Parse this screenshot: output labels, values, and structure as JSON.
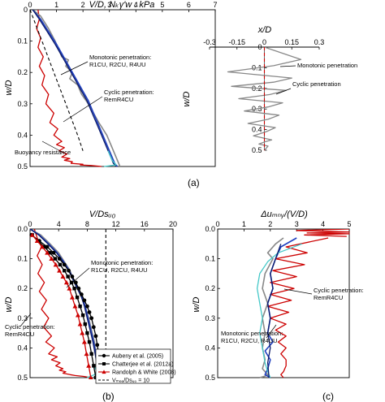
{
  "chart_data": [
    {
      "panel": "(a)",
      "type": "line",
      "xlabel": "V/D, Nₖγ'w : kPa",
      "ylabel": "w/D",
      "xlim": [
        0,
        7
      ],
      "ylim": [
        0.5,
        0
      ],
      "xticks": [
        "0",
        "1",
        "2",
        "3",
        "4",
        "5",
        "6",
        "7"
      ],
      "yticks": [
        "0",
        "0.1",
        "0.2",
        "0.3",
        "0.4",
        "0.5"
      ],
      "series": [
        {
          "key": "cyclic",
          "color": "#cc0000",
          "x": [
            0.3,
            0.35,
            0.25,
            0.4,
            0.3,
            0.5,
            0.35,
            0.55,
            0.45,
            0.7,
            0.6,
            0.9,
            0.75,
            1.05,
            0.9,
            1.2,
            1.0,
            1.3,
            1.1,
            1.4,
            1.2,
            1.5,
            1.3,
            1.6,
            1.55,
            2.0,
            1.9,
            2.3,
            2.7
          ],
          "y": [
            0,
            0.03,
            0.06,
            0.09,
            0.12,
            0.15,
            0.18,
            0.21,
            0.24,
            0.27,
            0.3,
            0.33,
            0.36,
            0.38,
            0.4,
            0.42,
            0.43,
            0.44,
            0.45,
            0.46,
            0.47,
            0.475,
            0.48,
            0.485,
            0.49,
            0.493,
            0.495,
            0.497,
            0.5
          ]
        },
        {
          "key": "gray",
          "color": "#888888",
          "x": [
            0.1,
            0.4,
            0.7,
            0.95,
            1.1,
            1.2,
            1.45,
            1.35,
            1.6,
            1.5,
            1.8,
            1.95,
            2.2,
            2.4,
            2.6,
            2.9,
            3.1,
            3.3,
            3.4
          ],
          "y": [
            0,
            0.02,
            0.06,
            0.1,
            0.13,
            0.15,
            0.16,
            0.18,
            0.2,
            0.22,
            0.24,
            0.27,
            0.3,
            0.33,
            0.36,
            0.4,
            0.44,
            0.48,
            0.5
          ]
        },
        {
          "key": "blue",
          "color": "#1f3fbf",
          "x": [
            0.1,
            0.4,
            0.7,
            1.0,
            1.2,
            1.4,
            1.6,
            1.8,
            2.0,
            2.2,
            2.4,
            2.6,
            2.8,
            3.0,
            3.2,
            3.3
          ],
          "y": [
            0,
            0.03,
            0.07,
            0.11,
            0.14,
            0.17,
            0.2,
            0.23,
            0.26,
            0.29,
            0.33,
            0.37,
            0.41,
            0.45,
            0.49,
            0.5
          ]
        },
        {
          "key": "navy",
          "color": "#0a1a6a",
          "x": [
            0.1,
            0.35,
            0.65,
            0.95,
            1.15,
            1.35,
            1.55,
            1.75,
            1.95,
            2.15,
            2.35,
            2.55,
            2.75,
            2.95,
            3.15,
            3.25
          ],
          "y": [
            0,
            0.03,
            0.07,
            0.11,
            0.14,
            0.17,
            0.2,
            0.23,
            0.26,
            0.29,
            0.33,
            0.37,
            0.41,
            0.45,
            0.49,
            0.5
          ]
        },
        {
          "key": "cyan",
          "color": "#44c8c8",
          "x": [
            2.95,
            3.05,
            3.1,
            3.2,
            3.25,
            2.8
          ],
          "y": [
            0.45,
            0.47,
            0.48,
            0.49,
            0.495,
            0.5
          ]
        },
        {
          "key": "buoyancy",
          "color": "#000000",
          "dash": true,
          "x": [
            0,
            0.45,
            0.9,
            1.35,
            1.8,
            2.0
          ],
          "y": [
            0,
            0.1,
            0.2,
            0.3,
            0.4,
            0.45
          ]
        }
      ],
      "annotations": [
        "Monotonic penetration:",
        "R1CU, R2CU, R4UU",
        "Cyclic penetration:",
        "RemR4CU",
        "Buoyancy resistance"
      ]
    },
    {
      "panel": "(a) inset",
      "type": "line",
      "xlabel": "x/D",
      "ylabel": "w/D",
      "xlim": [
        -0.3,
        0.3
      ],
      "ylim": [
        0.5,
        0
      ],
      "xticks": [
        "-0.3",
        "-0.15",
        "0",
        "0.15",
        "0.3"
      ],
      "yticks": [
        "0",
        "0.1",
        "0.2",
        "0.3",
        "0.4",
        "0.5"
      ],
      "series": [
        {
          "key": "sway",
          "color": "#888888",
          "x": [
            0,
            0.1,
            0.2,
            0.05,
            -0.2,
            0.15,
            0.05,
            -0.18,
            0.12,
            0.03,
            -0.14,
            0.1,
            0.02,
            -0.11,
            0.08,
            0.02,
            -0.09,
            0.06,
            0.01,
            -0.06,
            0.04,
            0.0,
            -0.03,
            0.02,
            0.0
          ],
          "y": [
            0,
            0.03,
            0.06,
            0.09,
            0.12,
            0.15,
            0.17,
            0.19,
            0.21,
            0.23,
            0.25,
            0.27,
            0.29,
            0.31,
            0.33,
            0.35,
            0.37,
            0.39,
            0.41,
            0.43,
            0.45,
            0.46,
            0.47,
            0.48,
            0.5
          ]
        },
        {
          "key": "center",
          "color": "#cc0000",
          "dash": true,
          "x": [
            0,
            0
          ],
          "y": [
            0,
            0.5
          ]
        }
      ],
      "annotations": [
        "Monotonic penetration",
        "Cyclic penetration"
      ]
    },
    {
      "panel": "(b)",
      "type": "line",
      "xlabel": "V/Dsᵤ₀",
      "ylabel": "w/D",
      "xlim": [
        0,
        20
      ],
      "ylim": [
        0.5,
        0
      ],
      "xticks": [
        "0",
        "4",
        "8",
        "12",
        "16",
        "20"
      ],
      "yticks": [
        "0.0",
        "0.1",
        "0.2",
        "0.3",
        "0.4",
        "0.5"
      ],
      "series": [
        {
          "key": "cyclic",
          "color": "#cc0000",
          "x": [
            0.6,
            1.0,
            1.6,
            1.0,
            1.7,
            1.1,
            2.0,
            1.3,
            2.3,
            1.6,
            2.6,
            1.9,
            3.0,
            2.2,
            3.4,
            2.6,
            3.8,
            3.0,
            4.2,
            3.6,
            4.6,
            4.1,
            5.0,
            4.6,
            5.6,
            6.3,
            7.5,
            8.5
          ],
          "y": [
            0,
            0.03,
            0.06,
            0.09,
            0.12,
            0.15,
            0.18,
            0.21,
            0.24,
            0.27,
            0.3,
            0.33,
            0.36,
            0.38,
            0.4,
            0.42,
            0.43,
            0.44,
            0.45,
            0.46,
            0.47,
            0.475,
            0.48,
            0.485,
            0.49,
            0.493,
            0.496,
            0.5
          ]
        },
        {
          "key": "gray",
          "color": "#888888",
          "x": [
            0,
            1.5,
            2.8,
            4.0,
            4.8,
            5.6,
            6.0,
            6.6,
            7.4,
            7.7,
            8.2,
            8.6,
            9.0,
            9.2,
            9.5,
            9.8,
            10.0
          ],
          "y": [
            0,
            0.02,
            0.05,
            0.08,
            0.11,
            0.14,
            0.17,
            0.2,
            0.23,
            0.26,
            0.3,
            0.34,
            0.38,
            0.42,
            0.46,
            0.49,
            0.5
          ]
        },
        {
          "key": "blue",
          "color": "#1f3fbf",
          "x": [
            0,
            1.3,
            2.6,
            3.8,
            4.7,
            5.5,
            6.1,
            6.7,
            7.3,
            7.7,
            8.1,
            8.5,
            8.9,
            9.2,
            9.5,
            9.7
          ],
          "y": [
            0,
            0.02,
            0.05,
            0.08,
            0.11,
            0.14,
            0.17,
            0.2,
            0.23,
            0.26,
            0.3,
            0.34,
            0.38,
            0.42,
            0.46,
            0.5
          ]
        },
        {
          "key": "navy",
          "color": "#0a1a6a",
          "x": [
            0,
            1.2,
            2.5,
            3.7,
            4.6,
            5.4,
            6.0,
            6.6,
            7.2,
            7.6,
            8.0,
            8.4,
            8.8,
            9.1,
            9.4,
            9.6
          ],
          "y": [
            0,
            0.02,
            0.05,
            0.08,
            0.11,
            0.14,
            0.17,
            0.2,
            0.23,
            0.26,
            0.3,
            0.34,
            0.38,
            0.42,
            0.46,
            0.5
          ]
        },
        {
          "key": "cyan",
          "color": "#44c8c8",
          "x": [
            8.9,
            9.4,
            9.0,
            8.0
          ],
          "y": [
            0.46,
            0.48,
            0.49,
            0.5
          ]
        },
        {
          "key": "aubeny",
          "color": "#000000",
          "marker": "circle",
          "x": [
            0.2,
            1.3,
            2.4,
            3.3,
            4.1,
            4.8,
            5.4,
            5.9,
            6.4,
            6.8,
            7.2,
            7.6,
            8.0,
            8.3,
            8.6,
            8.9,
            9.2,
            9.4,
            9.6,
            9.8,
            10.0,
            10.2
          ],
          "y": [
            0.02,
            0.04,
            0.06,
            0.08,
            0.1,
            0.12,
            0.14,
            0.16,
            0.18,
            0.2,
            0.22,
            0.24,
            0.26,
            0.28,
            0.3,
            0.33,
            0.36,
            0.39,
            0.42,
            0.45,
            0.48,
            0.5
          ]
        },
        {
          "key": "chatterjee",
          "color": "#000000",
          "marker": "square",
          "x": [
            0.3,
            1.1,
            2.0,
            2.8,
            3.5,
            4.2,
            4.8,
            5.3,
            5.8,
            6.2,
            6.6,
            7.0,
            7.4,
            7.7,
            8.0,
            8.3,
            8.6,
            8.9,
            9.2
          ],
          "y": [
            0.02,
            0.04,
            0.06,
            0.08,
            0.1,
            0.12,
            0.14,
            0.16,
            0.18,
            0.2,
            0.23,
            0.26,
            0.29,
            0.32,
            0.35,
            0.38,
            0.42,
            0.46,
            0.5
          ]
        },
        {
          "key": "randolph",
          "color": "#cc0000",
          "marker": "triangle",
          "x": [
            0.3,
            1.0,
            1.7,
            2.4,
            3.0,
            3.6,
            4.1,
            4.6,
            5.1,
            5.5,
            5.9,
            6.3,
            6.7,
            7.0,
            7.3,
            7.6,
            7.9,
            8.2,
            8.5
          ],
          "y": [
            0.02,
            0.04,
            0.06,
            0.08,
            0.1,
            0.12,
            0.14,
            0.16,
            0.18,
            0.2,
            0.23,
            0.26,
            0.29,
            0.32,
            0.35,
            0.38,
            0.42,
            0.46,
            0.5
          ]
        },
        {
          "key": "vref",
          "color": "#000000",
          "dash": true,
          "x": [
            10.6,
            10.6
          ],
          "y": [
            0,
            0.5
          ]
        }
      ],
      "legend": [
        {
          "key": "aubeny",
          "label": "Aubeny et al. (2005)"
        },
        {
          "key": "chatterjee",
          "label": "Chatterjee et al. (2012a)"
        },
        {
          "key": "randolph",
          "label": "Randolph & White (2008)"
        },
        {
          "key": "vref",
          "label": "Vₘₑₔ/Dsᵤ₀ = 10"
        }
      ],
      "legend_position": "bottom-right",
      "annotations": [
        "Monotonic penetration:",
        "R1CU, R2CU, R4UU",
        "Cyclic penetration:",
        "RemR4CU"
      ]
    },
    {
      "panel": "(c)",
      "type": "line",
      "xlabel": "Δuₘₙᵧ/(V/D)",
      "ylabel": "w/D",
      "xlim": [
        0,
        5
      ],
      "ylim": [
        0.5,
        0
      ],
      "xticks": [
        "0",
        "1",
        "2",
        "3",
        "4",
        "5"
      ],
      "yticks": [
        "0.0",
        "0.1",
        "0.2",
        "0.3",
        "0.4",
        "0.5"
      ],
      "series": [
        {
          "key": "spike",
          "color": "#cc0000",
          "x": [
            5,
            3.0,
            5,
            3.4,
            5,
            3.3,
            4.9
          ],
          "y": [
            0,
            0.005,
            0.01,
            0.013,
            0.016,
            0.02,
            0.025
          ]
        },
        {
          "key": "cyclic",
          "color": "#cc0000",
          "x": [
            4.2,
            2.6,
            3.4,
            2.2,
            3.3,
            2.1,
            3.0,
            2.0,
            2.9,
            2.0,
            2.8,
            1.9,
            2.7,
            2.0,
            2.6,
            2.2,
            2.6,
            2.3,
            2.6,
            2.4,
            2.6,
            2.6,
            2.5,
            2.4,
            2.5
          ],
          "y": [
            0.03,
            0.06,
            0.08,
            0.1,
            0.12,
            0.14,
            0.16,
            0.18,
            0.2,
            0.22,
            0.24,
            0.26,
            0.28,
            0.3,
            0.32,
            0.34,
            0.36,
            0.38,
            0.4,
            0.42,
            0.44,
            0.46,
            0.48,
            0.49,
            0.5
          ]
        },
        {
          "key": "gray",
          "color": "#888888",
          "x": [
            2.5,
            2.2,
            1.9,
            2.1,
            1.8,
            1.7,
            1.9,
            1.7,
            1.8,
            1.7,
            1.8,
            1.7,
            1.9,
            1.8,
            1.6
          ],
          "y": [
            0.03,
            0.05,
            0.08,
            0.1,
            0.15,
            0.2,
            0.25,
            0.3,
            0.35,
            0.4,
            0.44,
            0.47,
            0.49,
            0.495,
            0.5
          ]
        },
        {
          "key": "blue",
          "color": "#1f3fbf",
          "x": [
            3.0,
            2.4,
            2.2,
            2.0,
            2.1,
            1.9,
            2.0,
            1.9,
            2.1,
            1.8,
            2.0,
            1.9,
            1.8,
            2.0
          ],
          "y": [
            0.03,
            0.06,
            0.1,
            0.15,
            0.2,
            0.25,
            0.3,
            0.35,
            0.38,
            0.41,
            0.44,
            0.47,
            0.49,
            0.5
          ]
        },
        {
          "key": "cyan",
          "color": "#44c8c8",
          "x": [
            3.2,
            2.3,
            1.9,
            1.6,
            1.5,
            1.6,
            1.7,
            1.6,
            1.7,
            1.8,
            1.9,
            2.0
          ],
          "y": [
            0.05,
            0.08,
            0.11,
            0.15,
            0.2,
            0.25,
            0.3,
            0.35,
            0.4,
            0.45,
            0.48,
            0.5
          ]
        },
        {
          "key": "navy",
          "color": "#0a1a6a",
          "x": [
            2.4,
            2.2,
            2.0,
            2.1,
            1.9,
            2.0,
            1.9,
            2.0,
            1.9,
            1.95
          ],
          "y": [
            0.05,
            0.1,
            0.15,
            0.2,
            0.25,
            0.3,
            0.35,
            0.4,
            0.45,
            0.5
          ]
        }
      ],
      "annotations": [
        "Cyclic penetration:",
        "RemR4CU",
        "Monotonic penetration:",
        "R1CU, R2CU, R4UU"
      ]
    }
  ],
  "panel_labels": [
    "(a)",
    "(b)",
    "(c)"
  ]
}
